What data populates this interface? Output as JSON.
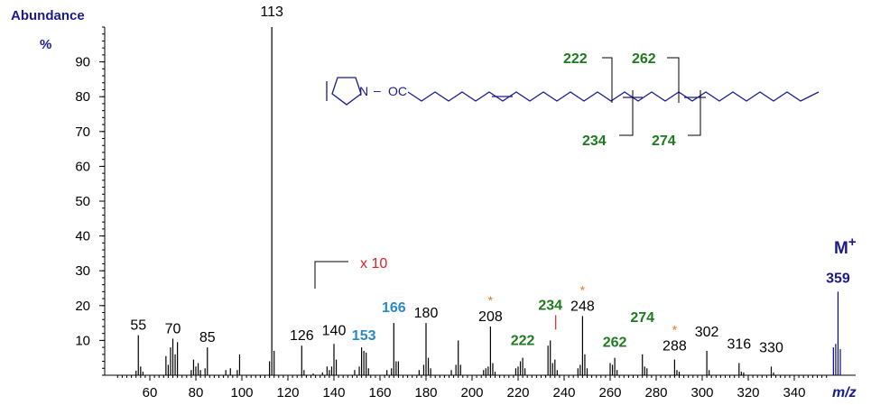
{
  "chart_data": {
    "type": "bar",
    "ylabel": "Abundance",
    "yunit": "%",
    "xlabel": "m/z",
    "xlim": [
      40,
      355
    ],
    "ylim": [
      0,
      100
    ],
    "xticks": [
      60,
      80,
      100,
      120,
      140,
      160,
      180,
      200,
      220,
      240,
      260,
      280,
      300,
      320,
      340
    ],
    "yticks": [
      10,
      20,
      30,
      40,
      50,
      60,
      70,
      80,
      90
    ],
    "magnification_note": "x 10",
    "magnification_from_mz": 130,
    "peaks": [
      {
        "mz": 54,
        "ab": 1.3
      },
      {
        "mz": 55,
        "ab": 11.5
      },
      {
        "mz": 56,
        "ab": 2.5
      },
      {
        "mz": 57,
        "ab": 1.0
      },
      {
        "mz": 67,
        "ab": 5.5
      },
      {
        "mz": 68,
        "ab": 3.0
      },
      {
        "mz": 69,
        "ab": 8.0
      },
      {
        "mz": 70,
        "ab": 10.5
      },
      {
        "mz": 71,
        "ab": 6.0
      },
      {
        "mz": 72,
        "ab": 9.5
      },
      {
        "mz": 78,
        "ab": 1.5
      },
      {
        "mz": 79,
        "ab": 4.5
      },
      {
        "mz": 80,
        "ab": 2.5
      },
      {
        "mz": 81,
        "ab": 3.5
      },
      {
        "mz": 82,
        "ab": 1.5
      },
      {
        "mz": 84,
        "ab": 2.0
      },
      {
        "mz": 85,
        "ab": 8.0
      },
      {
        "mz": 93,
        "ab": 1.5
      },
      {
        "mz": 95,
        "ab": 2.0
      },
      {
        "mz": 98,
        "ab": 1.5
      },
      {
        "mz": 99,
        "ab": 6.0
      },
      {
        "mz": 112,
        "ab": 4.0
      },
      {
        "mz": 113,
        "ab": 100
      },
      {
        "mz": 114,
        "ab": 7.0
      },
      {
        "mz": 126,
        "ab": 8.5
      },
      {
        "mz": 127,
        "ab": 1.5
      },
      {
        "mz": 131,
        "ab": 0.5
      },
      {
        "mz": 135,
        "ab": 0.8
      },
      {
        "mz": 137,
        "ab": 2.5
      },
      {
        "mz": 138,
        "ab": 1.5
      },
      {
        "mz": 139,
        "ab": 2.5
      },
      {
        "mz": 140,
        "ab": 9.0
      },
      {
        "mz": 141,
        "ab": 4.5
      },
      {
        "mz": 149,
        "ab": 1.5
      },
      {
        "mz": 151,
        "ab": 2.5
      },
      {
        "mz": 152,
        "ab": 8.0
      },
      {
        "mz": 153,
        "ab": 7.0
      },
      {
        "mz": 154,
        "ab": 6.5
      },
      {
        "mz": 155,
        "ab": 2.0
      },
      {
        "mz": 163,
        "ab": 1.5
      },
      {
        "mz": 165,
        "ab": 2.0
      },
      {
        "mz": 166,
        "ab": 15.0
      },
      {
        "mz": 167,
        "ab": 4.0
      },
      {
        "mz": 168,
        "ab": 4.0
      },
      {
        "mz": 177,
        "ab": 1.5
      },
      {
        "mz": 179,
        "ab": 3.0
      },
      {
        "mz": 180,
        "ab": 15.0
      },
      {
        "mz": 181,
        "ab": 5.0
      },
      {
        "mz": 182,
        "ab": 2.0
      },
      {
        "mz": 191,
        "ab": 1.5
      },
      {
        "mz": 193,
        "ab": 3.0
      },
      {
        "mz": 194,
        "ab": 10.0
      },
      {
        "mz": 195,
        "ab": 3.0
      },
      {
        "mz": 205,
        "ab": 1.5
      },
      {
        "mz": 206,
        "ab": 2.0
      },
      {
        "mz": 207,
        "ab": 2.5
      },
      {
        "mz": 208,
        "ab": 14.0
      },
      {
        "mz": 209,
        "ab": 3.5
      },
      {
        "mz": 210,
        "ab": 1.0
      },
      {
        "mz": 219,
        "ab": 2.0
      },
      {
        "mz": 220,
        "ab": 2.5
      },
      {
        "mz": 221,
        "ab": 4.0
      },
      {
        "mz": 222,
        "ab": 5.0
      },
      {
        "mz": 223,
        "ab": 2.0
      },
      {
        "mz": 233,
        "ab": 8.5
      },
      {
        "mz": 234,
        "ab": 10.0
      },
      {
        "mz": 235,
        "ab": 3.5
      },
      {
        "mz": 236,
        "ab": 4.5
      },
      {
        "mz": 237,
        "ab": 1.5
      },
      {
        "mz": 246,
        "ab": 2.0
      },
      {
        "mz": 247,
        "ab": 3.0
      },
      {
        "mz": 248,
        "ab": 17.0
      },
      {
        "mz": 249,
        "ab": 6.0
      },
      {
        "mz": 250,
        "ab": 2.0
      },
      {
        "mz": 260,
        "ab": 3.5
      },
      {
        "mz": 261,
        "ab": 3.0
      },
      {
        "mz": 262,
        "ab": 5.0
      },
      {
        "mz": 263,
        "ab": 1.5
      },
      {
        "mz": 274,
        "ab": 6.0
      },
      {
        "mz": 275,
        "ab": 2.5
      },
      {
        "mz": 276,
        "ab": 2.0
      },
      {
        "mz": 288,
        "ab": 4.5
      },
      {
        "mz": 289,
        "ab": 1.5
      },
      {
        "mz": 290,
        "ab": 1.0
      },
      {
        "mz": 302,
        "ab": 7.0
      },
      {
        "mz": 303,
        "ab": 1.5
      },
      {
        "mz": 316,
        "ab": 3.5
      },
      {
        "mz": 317,
        "ab": 1.0
      },
      {
        "mz": 318,
        "ab": 0.8
      },
      {
        "mz": 330,
        "ab": 2.5
      },
      {
        "mz": 331,
        "ab": 0.8
      },
      {
        "mz": 357,
        "ab": 8.0
      },
      {
        "mz": 358,
        "ab": 9.0
      },
      {
        "mz": 359,
        "ab": 24.0
      },
      {
        "mz": 360,
        "ab": 7.5
      }
    ],
    "labels": [
      {
        "mz": 55,
        "text": "55",
        "style": "normal"
      },
      {
        "mz": 70,
        "text": "70",
        "style": "normal"
      },
      {
        "mz": 85,
        "text": "85",
        "style": "normal"
      },
      {
        "mz": 113,
        "text": "113",
        "style": "normal"
      },
      {
        "mz": 126,
        "text": "126",
        "style": "normal"
      },
      {
        "mz": 140,
        "text": "140",
        "style": "normal"
      },
      {
        "mz": 153,
        "text": "153",
        "style": "blue"
      },
      {
        "mz": 166,
        "text": "166",
        "style": "blue"
      },
      {
        "mz": 180,
        "text": "180",
        "style": "normal"
      },
      {
        "mz": 208,
        "text": "208",
        "style": "normal",
        "star": true
      },
      {
        "mz": 222,
        "text": "222",
        "style": "green"
      },
      {
        "mz": 234,
        "text": "234",
        "style": "green",
        "tick": true
      },
      {
        "mz": 248,
        "text": "248",
        "style": "normal",
        "star": true
      },
      {
        "mz": 262,
        "text": "262",
        "style": "green"
      },
      {
        "mz": 274,
        "text": "274",
        "style": "green"
      },
      {
        "mz": 288,
        "text": "288",
        "style": "normal",
        "star": true
      },
      {
        "mz": 302,
        "text": "302",
        "style": "normal"
      },
      {
        "mz": 316,
        "text": "316",
        "style": "normal"
      },
      {
        "mz": 330,
        "text": "330",
        "style": "normal"
      },
      {
        "mz": 359,
        "text": "359",
        "style": "navy"
      }
    ],
    "molecular_ion_label": "M",
    "molecular_ion_sup": "+",
    "star_mark": "*"
  },
  "structure": {
    "n_label": "N",
    "dash": "–",
    "oc_label": "OC",
    "fragments": [
      "222",
      "262",
      "234",
      "274"
    ]
  },
  "colors": {
    "green": "#1f7a1f",
    "blue": "#2a8ac8",
    "navy": "#1a1a8c",
    "orange": "#e07a1a",
    "red": "#e02020"
  }
}
